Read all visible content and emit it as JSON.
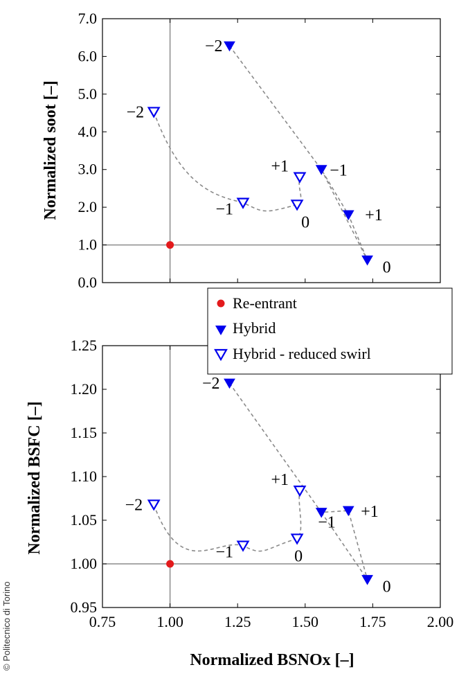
{
  "copyright": "© Politecnico di Torino",
  "x_axis": {
    "label": "Normalized BSNOx [–]",
    "range": [
      0.75,
      2.0
    ],
    "ticks": [
      "0.75",
      "1.00",
      "1.25",
      "1.50",
      "1.75",
      "2.00"
    ]
  },
  "legend": {
    "placement": "between panels, right",
    "entries": [
      "Re-entrant",
      "Hybrid",
      "Hybrid - reduced swirl"
    ]
  },
  "chart_data": [
    {
      "type": "scatter",
      "ylabel": "Normalized soot [–]",
      "xlim": [
        0.75,
        2.0
      ],
      "ylim": [
        0.0,
        7.0
      ],
      "yticks": [
        "0.0",
        "1.0",
        "2.0",
        "3.0",
        "4.0",
        "5.0",
        "6.0",
        "7.0"
      ],
      "reference_lines": {
        "x": 1.0,
        "y": 1.0
      },
      "series": [
        {
          "name": "Re-entrant",
          "color": "#e31a1c",
          "marker": "circle",
          "points": [
            {
              "x": 1.0,
              "y": 1.0,
              "label": ""
            }
          ]
        },
        {
          "name": "Hybrid",
          "color": "#0000ee",
          "marker": "triangle-down-filled",
          "points": [
            {
              "x": 1.22,
              "y": 6.28,
              "label": "−2"
            },
            {
              "x": 1.56,
              "y": 3.0,
              "label": "−1"
            },
            {
              "x": 1.73,
              "y": 0.6,
              "label": "0"
            },
            {
              "x": 1.66,
              "y": 1.8,
              "label": "+1"
            }
          ]
        },
        {
          "name": "Hybrid - reduced swirl",
          "color": "#0000ee",
          "marker": "triangle-down-open",
          "points": [
            {
              "x": 0.94,
              "y": 4.53,
              "label": "−2"
            },
            {
              "x": 1.27,
              "y": 2.12,
              "label": "−1"
            },
            {
              "x": 1.47,
              "y": 2.07,
              "label": "0"
            },
            {
              "x": 1.48,
              "y": 2.8,
              "label": "+1"
            }
          ]
        }
      ]
    },
    {
      "type": "scatter",
      "ylabel": "Normalized BSFC [–]",
      "xlim": [
        0.75,
        2.0
      ],
      "ylim": [
        0.95,
        1.25
      ],
      "yticks": [
        "0.95",
        "1.00",
        "1.05",
        "1.10",
        "1.15",
        "1.20",
        "1.25"
      ],
      "reference_lines": {
        "x": 1.0,
        "y": 1.0
      },
      "series": [
        {
          "name": "Re-entrant",
          "color": "#e31a1c",
          "marker": "circle",
          "points": [
            {
              "x": 1.0,
              "y": 1.0,
              "label": ""
            }
          ]
        },
        {
          "name": "Hybrid",
          "color": "#0000ee",
          "marker": "triangle-down-filled",
          "points": [
            {
              "x": 1.22,
              "y": 1.207,
              "label": "−2"
            },
            {
              "x": 1.56,
              "y": 1.059,
              "label": "−1"
            },
            {
              "x": 1.73,
              "y": 0.982,
              "label": "0"
            },
            {
              "x": 1.66,
              "y": 1.061,
              "label": "+1"
            }
          ]
        },
        {
          "name": "Hybrid - reduced swirl",
          "color": "#0000ee",
          "marker": "triangle-down-open",
          "points": [
            {
              "x": 0.94,
              "y": 1.068,
              "label": "−2"
            },
            {
              "x": 1.27,
              "y": 1.021,
              "label": "−1"
            },
            {
              "x": 1.47,
              "y": 1.029,
              "label": "0"
            },
            {
              "x": 1.48,
              "y": 1.084,
              "label": "+1"
            }
          ]
        }
      ]
    }
  ]
}
